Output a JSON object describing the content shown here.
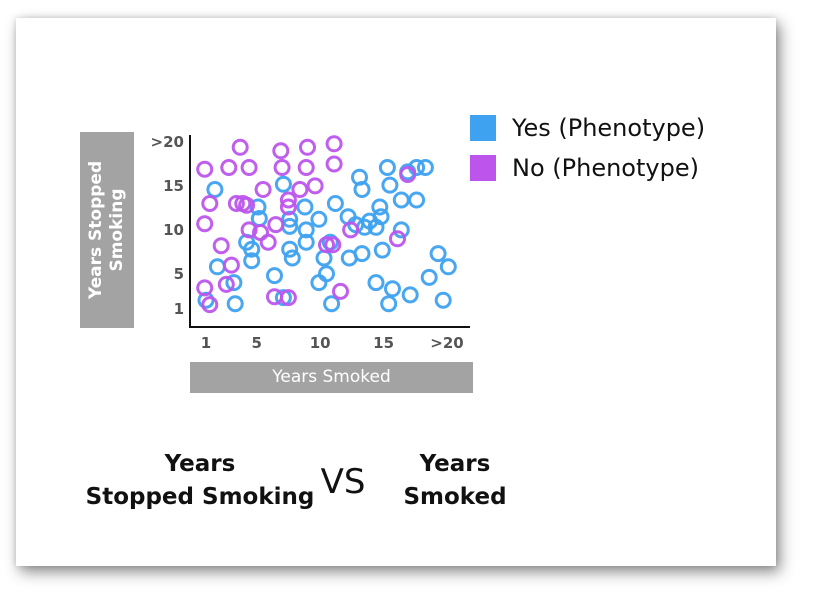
{
  "chart_data": {
    "type": "scatter",
    "title": "",
    "xlabel": "Years Smoked",
    "ylabel": "Years Stopped Smoking",
    "x_ticks": [
      "1",
      "5",
      "10",
      "15",
      ">20"
    ],
    "y_ticks": [
      ">20",
      "15",
      "10",
      "5",
      "1"
    ],
    "xlim": [
      0,
      21
    ],
    "ylim": [
      0,
      21
    ],
    "grid": false,
    "legend_position": "top-right",
    "series": [
      {
        "name": "Yes (Phenotype)",
        "color": "#3fa2f0",
        "points": [
          [
            1,
            2
          ],
          [
            1.7,
            14.6
          ],
          [
            1.9,
            5.8
          ],
          [
            3.2,
            4
          ],
          [
            3.3,
            1.6
          ],
          [
            4.2,
            8.6
          ],
          [
            4.6,
            7.8
          ],
          [
            4.6,
            6.5
          ],
          [
            5.2,
            11.3
          ],
          [
            5.1,
            12.6
          ],
          [
            6.4,
            4.8
          ],
          [
            7.1,
            15.2
          ],
          [
            7.6,
            11.2
          ],
          [
            7.6,
            10.4
          ],
          [
            7.6,
            7.8
          ],
          [
            7.8,
            6.8
          ],
          [
            7.1,
            2.3
          ],
          [
            8.9,
            8.6
          ],
          [
            8.8,
            12.6
          ],
          [
            8.9,
            10
          ],
          [
            9.9,
            11.2
          ],
          [
            10.3,
            6.8
          ],
          [
            10.8,
            8.6
          ],
          [
            9.9,
            4
          ],
          [
            10.5,
            5
          ],
          [
            10.9,
            1.6
          ],
          [
            11.2,
            13
          ],
          [
            12.3,
            6.8
          ],
          [
            12.2,
            11.5
          ],
          [
            13.1,
            16
          ],
          [
            13.3,
            14.6
          ],
          [
            13.3,
            7.3
          ],
          [
            13.5,
            10.3
          ],
          [
            13.9,
            11
          ],
          [
            14.4,
            10.3
          ],
          [
            14.8,
            11.5
          ],
          [
            14.4,
            4
          ],
          [
            14.7,
            12.6
          ],
          [
            15.3,
            17.1
          ],
          [
            15.5,
            15.1
          ],
          [
            15.7,
            3.3
          ],
          [
            15.4,
            1.6
          ],
          [
            16.4,
            10
          ],
          [
            16.4,
            13.4
          ],
          [
            17.1,
            2.6
          ],
          [
            17.6,
            13.4
          ],
          [
            17.6,
            17.1
          ],
          [
            18.3,
            17.1
          ],
          [
            18.6,
            4.6
          ],
          [
            19.3,
            7.3
          ],
          [
            19.7,
            2
          ],
          [
            20.1,
            5.8
          ],
          [
            14.9,
            7.7
          ],
          [
            16.9,
            16.6
          ],
          [
            12.8,
            10.6
          ]
        ]
      },
      {
        "name": "No (Phenotype)",
        "color": "#bd55ec",
        "points": [
          [
            0.9,
            16.9
          ],
          [
            1.3,
            13
          ],
          [
            0.9,
            10.7
          ],
          [
            1.3,
            1.5
          ],
          [
            0.9,
            3.4
          ],
          [
            2.2,
            8.2
          ],
          [
            2.8,
            17.1
          ],
          [
            3,
            6
          ],
          [
            3.7,
            19.4
          ],
          [
            3.4,
            13
          ],
          [
            3.9,
            13
          ],
          [
            4.4,
            10
          ],
          [
            4.4,
            17.1
          ],
          [
            5.3,
            9.7
          ],
          [
            5.5,
            14.6
          ],
          [
            5.9,
            8.6
          ],
          [
            6.4,
            2.4
          ],
          [
            6.5,
            10.6
          ],
          [
            6.9,
            19
          ],
          [
            7,
            17.1
          ],
          [
            7.5,
            13.4
          ],
          [
            7.5,
            12.6
          ],
          [
            7.5,
            2.3
          ],
          [
            8.4,
            14.6
          ],
          [
            8.9,
            17.1
          ],
          [
            9,
            19.4
          ],
          [
            9.6,
            15
          ],
          [
            10.5,
            8.3
          ],
          [
            11,
            8.3
          ],
          [
            11.1,
            17.5
          ],
          [
            11.1,
            19.8
          ],
          [
            11.6,
            3
          ],
          [
            12.4,
            10
          ],
          [
            16.1,
            9
          ],
          [
            16.9,
            16.3
          ],
          [
            2.6,
            3.8
          ],
          [
            4.2,
            12.8
          ]
        ]
      }
    ]
  },
  "caption": {
    "left_line1": "Years",
    "left_line2": "Stopped Smoking",
    "vs": "VS",
    "right_line1": "Years",
    "right_line2": "Smoked"
  }
}
